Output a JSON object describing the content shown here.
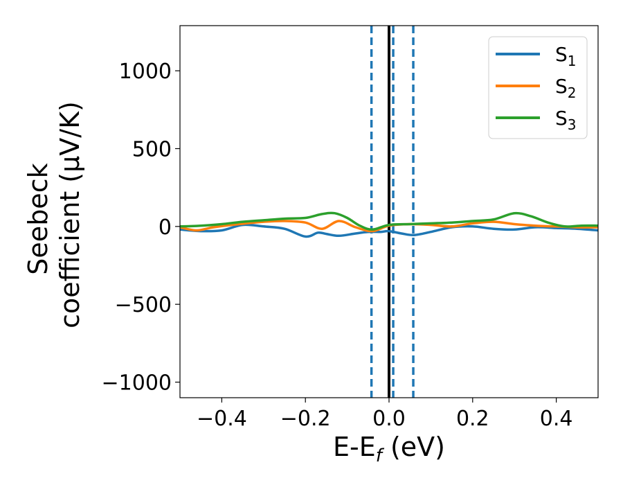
{
  "chart_data": {
    "type": "line",
    "xlabel": "E-E",
    "xlabel_sub": "f",
    "xlabel_unit": " (eV)",
    "ylabel_line1": "Seebeck",
    "ylabel_line2": "coefficient  (μV/K)",
    "xlim": [
      -0.5,
      0.5
    ],
    "ylim": [
      -1100,
      1290
    ],
    "xticks": [
      -0.4,
      -0.2,
      0.0,
      0.2,
      0.4
    ],
    "xtick_labels": [
      "−0.4",
      "−0.2",
      "0.0",
      "0.2",
      "0.4"
    ],
    "yticks": [
      -1000,
      -500,
      0,
      500,
      1000
    ],
    "ytick_labels": [
      "−1000",
      "−500",
      "0",
      "500",
      "1000"
    ],
    "grid": false,
    "legend_position": "top-right",
    "vlines": [
      {
        "x": 0.0,
        "style": "solid",
        "color": "#000000"
      },
      {
        "x": -0.042,
        "style": "dashed",
        "color": "#1f77b4"
      },
      {
        "x": 0.01,
        "style": "dashed",
        "color": "#1f77b4"
      },
      {
        "x": 0.058,
        "style": "dashed",
        "color": "#1f77b4"
      }
    ],
    "series": [
      {
        "name": "S",
        "sub": "1",
        "color": "#1f77b4",
        "x": [
          -0.5,
          -0.45,
          -0.4,
          -0.35,
          -0.3,
          -0.25,
          -0.2,
          -0.17,
          -0.15,
          -0.12,
          -0.08,
          -0.05,
          -0.02,
          0.0,
          0.03,
          0.06,
          0.1,
          0.15,
          0.2,
          0.25,
          0.3,
          0.35,
          0.4,
          0.45,
          0.5
        ],
        "y": [
          -20,
          -30,
          -25,
          10,
          0,
          -15,
          -65,
          -40,
          -48,
          -60,
          -45,
          -35,
          -35,
          -30,
          -45,
          -55,
          -35,
          -5,
          0,
          -15,
          -20,
          -5,
          -10,
          -15,
          -25
        ]
      },
      {
        "name": "S",
        "sub": "2",
        "color": "#ff7f0e",
        "x": [
          -0.5,
          -0.46,
          -0.42,
          -0.36,
          -0.3,
          -0.25,
          -0.2,
          -0.16,
          -0.12,
          -0.08,
          -0.04,
          0.0,
          0.05,
          0.1,
          0.15,
          0.2,
          0.25,
          0.3,
          0.35,
          0.4,
          0.45,
          0.5
        ],
        "y": [
          -5,
          -25,
          -5,
          15,
          30,
          35,
          25,
          -15,
          35,
          -5,
          -30,
          5,
          15,
          10,
          0,
          20,
          30,
          15,
          5,
          0,
          -5,
          -5
        ]
      },
      {
        "name": "S",
        "sub": "3",
        "color": "#2ca02c",
        "x": [
          -0.5,
          -0.45,
          -0.4,
          -0.35,
          -0.3,
          -0.25,
          -0.2,
          -0.16,
          -0.13,
          -0.1,
          -0.07,
          -0.04,
          0.0,
          0.05,
          0.1,
          0.15,
          0.2,
          0.25,
          0.3,
          0.34,
          0.38,
          0.42,
          0.46,
          0.5
        ],
        "y": [
          0,
          5,
          15,
          30,
          40,
          50,
          55,
          80,
          85,
          55,
          5,
          -20,
          10,
          15,
          20,
          25,
          35,
          45,
          85,
          65,
          25,
          0,
          5,
          5
        ]
      }
    ]
  }
}
